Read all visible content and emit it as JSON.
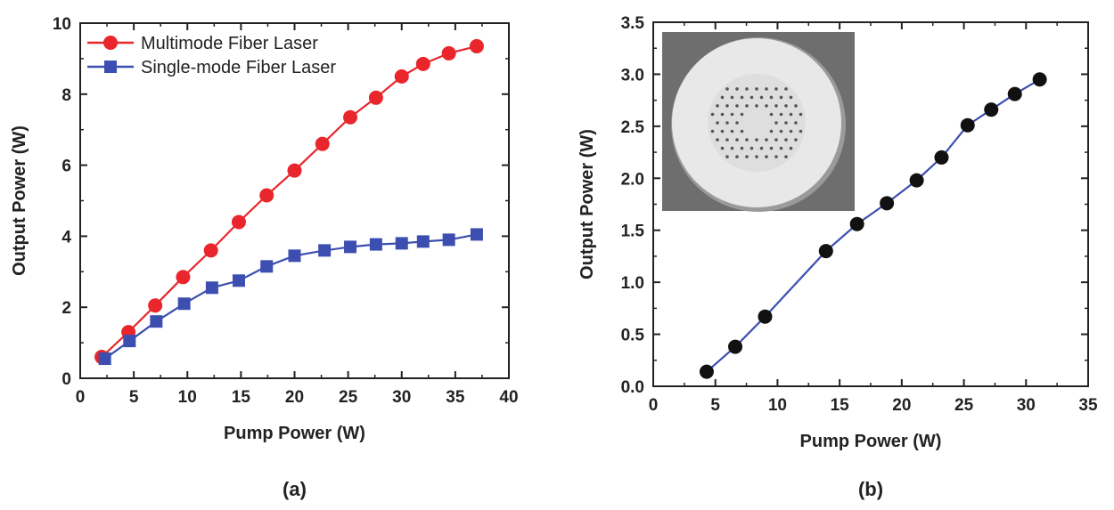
{
  "chart_data": [
    {
      "panel": "(a)",
      "type": "line",
      "xlabel": "Pump Power (W)",
      "ylabel": "Output Power (W)",
      "xlim": [
        0,
        40
      ],
      "ylim": [
        0,
        10
      ],
      "xticks": [
        0,
        5,
        10,
        15,
        20,
        25,
        30,
        35,
        40
      ],
      "yticks": [
        0,
        2,
        4,
        6,
        8,
        10
      ],
      "grid": false,
      "legend": "top-left",
      "series": [
        {
          "name": "Multimode Fiber Laser",
          "color": "#e8262c",
          "marker": "circle",
          "x": [
            2.0,
            4.5,
            7.0,
            9.6,
            12.2,
            14.8,
            17.4,
            20.0,
            22.6,
            25.2,
            27.6,
            30.0,
            32.0,
            34.4,
            37.0
          ],
          "y": [
            0.6,
            1.3,
            2.05,
            2.85,
            3.6,
            4.4,
            5.15,
            5.85,
            6.6,
            7.35,
            7.9,
            8.5,
            8.85,
            9.15,
            9.35
          ]
        },
        {
          "name": "Single-mode Fiber Laser",
          "color": "#3c4fb0",
          "marker": "square",
          "x": [
            2.3,
            4.6,
            7.1,
            9.7,
            12.3,
            14.8,
            17.4,
            20.0,
            22.8,
            25.2,
            27.6,
            30.0,
            32.0,
            34.4,
            37.0
          ],
          "y": [
            0.55,
            1.05,
            1.6,
            2.1,
            2.55,
            2.75,
            3.15,
            3.45,
            3.6,
            3.7,
            3.77,
            3.8,
            3.85,
            3.9,
            4.05
          ]
        }
      ]
    },
    {
      "panel": "(b)",
      "type": "line",
      "xlabel": "Pump Power (W)",
      "ylabel": "Output Power (W)",
      "xlim": [
        0,
        35
      ],
      "ylim": [
        0.0,
        3.5
      ],
      "xticks": [
        0,
        5,
        10,
        15,
        20,
        25,
        30,
        35
      ],
      "yticks": [
        0.0,
        0.5,
        1.0,
        1.5,
        2.0,
        2.5,
        3.0,
        3.5
      ],
      "grid": false,
      "inset": "fiber cross-section micrograph (top-left)",
      "series": [
        {
          "color": "#111111",
          "line_color": "#3c4fb0",
          "marker": "circle",
          "x": [
            4.3,
            6.6,
            9.0,
            13.9,
            16.4,
            18.8,
            21.2,
            23.2,
            25.3,
            27.2,
            29.1,
            31.1
          ],
          "y": [
            0.14,
            0.38,
            0.67,
            1.3,
            1.56,
            1.76,
            1.98,
            2.2,
            2.51,
            2.66,
            2.81,
            2.95
          ]
        }
      ]
    }
  ]
}
